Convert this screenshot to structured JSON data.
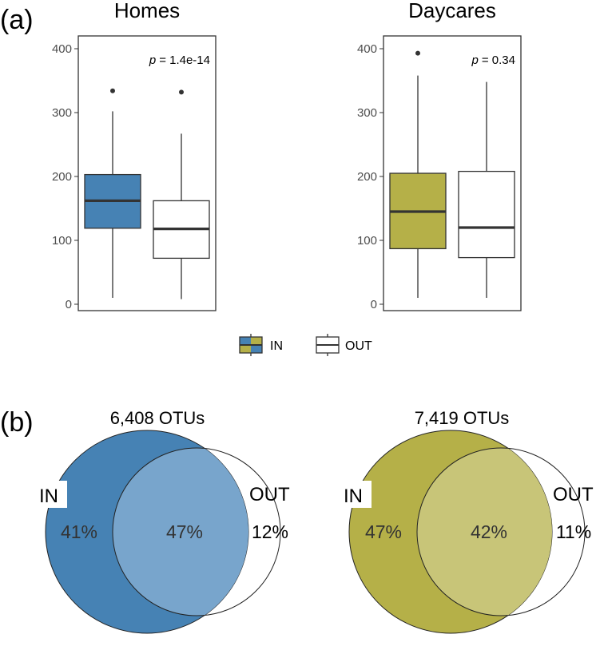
{
  "chart_data": [
    {
      "type": "box",
      "panel_label": "(a)",
      "title": "Homes",
      "ylim": [
        0,
        400
      ],
      "yticks": [
        0,
        100,
        200,
        300,
        400
      ],
      "p_value": {
        "label": "p",
        "value": "= 1.4e-14"
      },
      "series": [
        {
          "name": "IN",
          "color": "#4682b4",
          "whisker_low": 10,
          "q1": 119,
          "median": 162,
          "q3": 203,
          "whisker_high": 302,
          "outliers": [
            334
          ]
        },
        {
          "name": "OUT",
          "color": "#ffffff",
          "whisker_low": 8,
          "q1": 72,
          "median": 118,
          "q3": 162,
          "whisker_high": 267,
          "outliers": [
            332
          ]
        }
      ]
    },
    {
      "type": "box",
      "title": "Daycares",
      "ylim": [
        0,
        400
      ],
      "yticks": [
        0,
        100,
        200,
        300,
        400
      ],
      "p_value": {
        "label": "p",
        "value": "= 0.34"
      },
      "series": [
        {
          "name": "IN",
          "color": "#b5b048",
          "whisker_low": 10,
          "q1": 87,
          "median": 145,
          "q3": 205,
          "whisker_high": 358,
          "outliers": [
            393
          ]
        },
        {
          "name": "OUT",
          "color": "#ffffff",
          "whisker_low": 10,
          "q1": 73,
          "median": 120,
          "q3": 208,
          "whisker_high": 348,
          "outliers": []
        }
      ]
    },
    {
      "type": "venn",
      "panel_label": "(b)",
      "title": "6,408 OTUs",
      "sets": [
        "IN",
        "OUT"
      ],
      "color": "#4682b4",
      "overlap_color": "#78a5cc",
      "values": [
        "41%",
        "47%",
        "12%"
      ]
    },
    {
      "type": "venn",
      "title": "7,419 OTUs",
      "sets": [
        "IN",
        "OUT"
      ],
      "color": "#b5b048",
      "overlap_color": "#c8c578",
      "values": [
        "47%",
        "42%",
        "11%"
      ]
    }
  ],
  "legend": {
    "entries": [
      "IN",
      "OUT"
    ],
    "colors": [
      "#4682b4",
      "#b5b048"
    ]
  }
}
